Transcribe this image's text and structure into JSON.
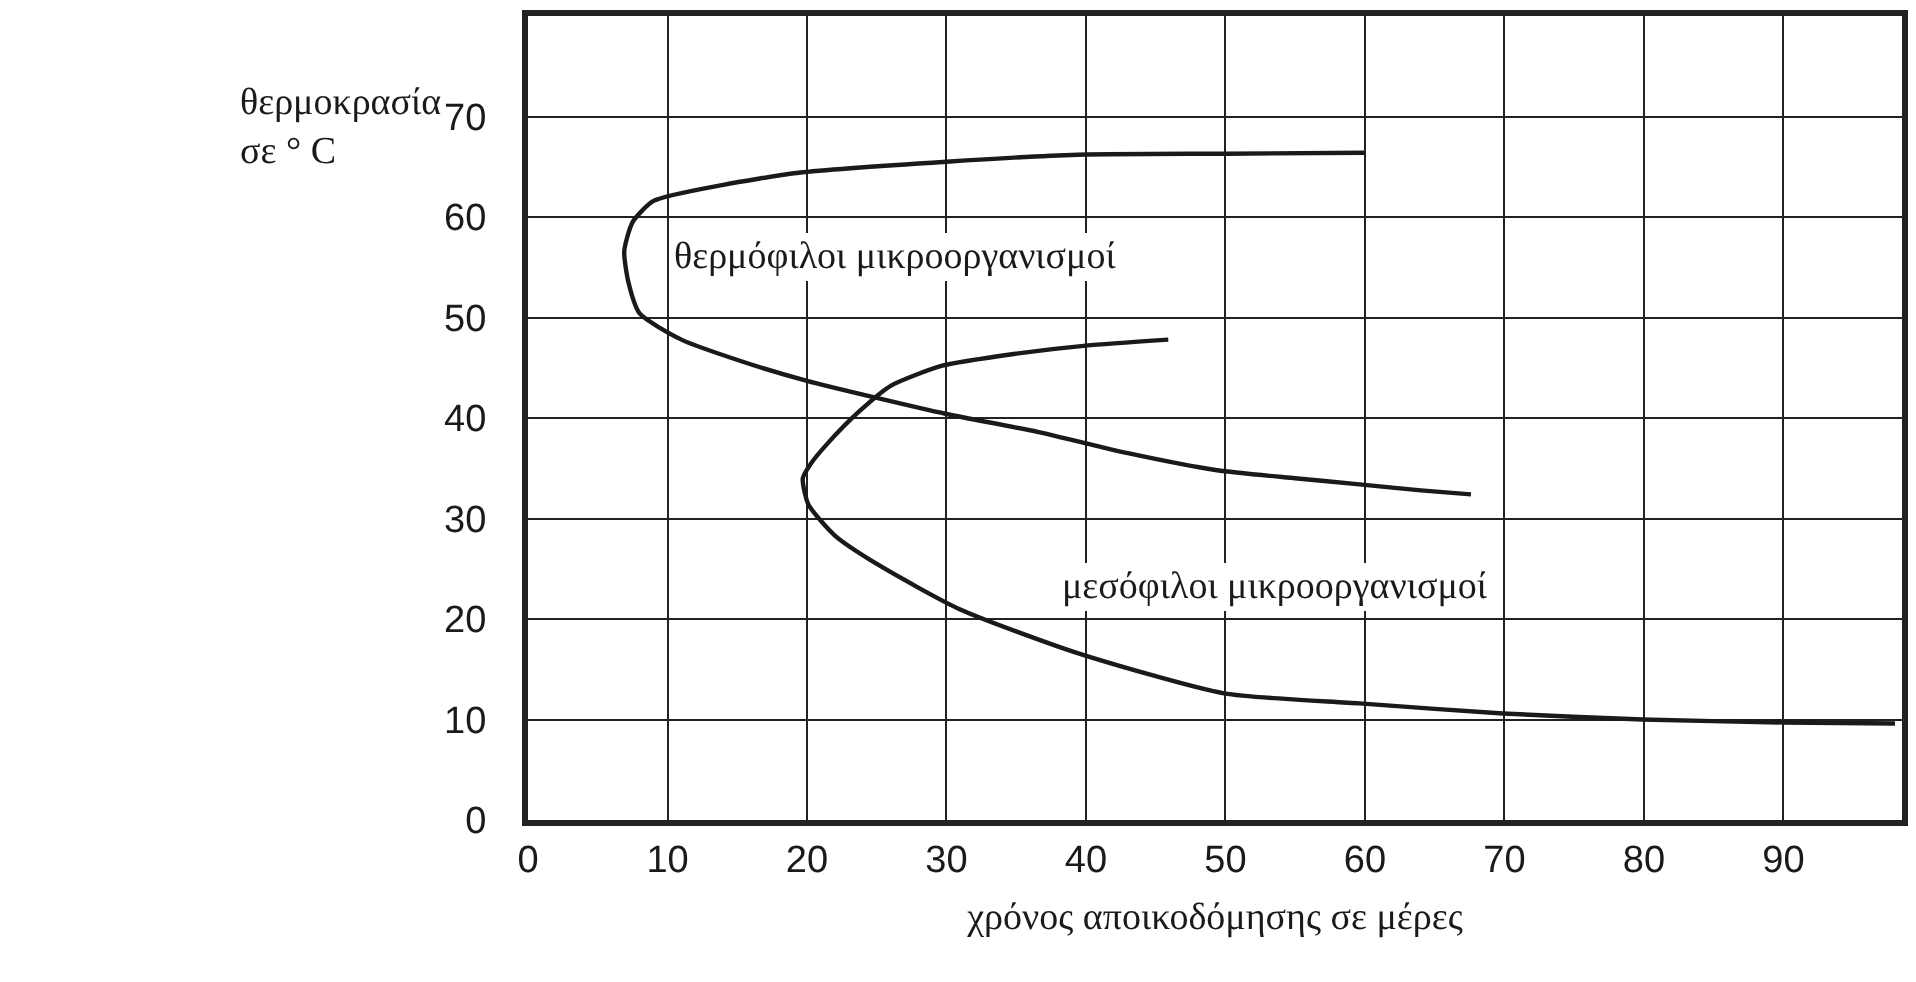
{
  "chart_data": {
    "type": "line",
    "xlabel": "χρόνος αποικοδόμησης σε μέρες",
    "ylabel": "θερμοκρασία\nσε ° C",
    "xlim": [
      0,
      98.5
    ],
    "ylim": [
      0,
      80
    ],
    "xticks": [
      0,
      10,
      20,
      30,
      40,
      50,
      60,
      70,
      80,
      90
    ],
    "yticks": [
      0,
      10,
      20,
      30,
      40,
      50,
      60,
      70
    ],
    "grid": true,
    "legend": false,
    "marker": "none",
    "line_style": "solid",
    "series": [
      {
        "name": "θερμόφιλοι μικροοργανισμοί",
        "color": "#1a1a1a",
        "x": [
          60,
          50,
          39.4,
          30,
          19.4,
          14,
          9,
          7.5,
          6.9,
          7.2,
          8,
          11,
          15.4,
          20,
          25,
          30,
          36.6,
          43,
          49.4,
          55,
          59.6,
          64,
          67.6
        ],
        "values": [
          66.4,
          66.3,
          66.2,
          65.5,
          64.4,
          63.2,
          61.6,
          59.5,
          56.6,
          53.5,
          50.4,
          47.8,
          45.6,
          43.7,
          42,
          40.4,
          38.6,
          36.5,
          34.8,
          34,
          33.4,
          32.8,
          32.4
        ]
      },
      {
        "name": "μεσόφιλοι μικροοργανισμοί",
        "color": "#1a1a1a",
        "x": [
          45.9,
          40,
          35,
          29.7,
          26,
          23.7,
          21.5,
          20.3,
          19.7,
          20.1,
          22,
          25.1,
          30.9,
          39.4,
          49.9,
          59.6,
          69.9,
          79.9,
          90,
          98
        ],
        "values": [
          47.8,
          47.2,
          46.4,
          45.2,
          43.2,
          40.6,
          37.5,
          35.5,
          34,
          31.4,
          28.3,
          25.4,
          21,
          16.6,
          12.6,
          11.6,
          10.6,
          10,
          9.7,
          9.6
        ]
      }
    ]
  }
}
